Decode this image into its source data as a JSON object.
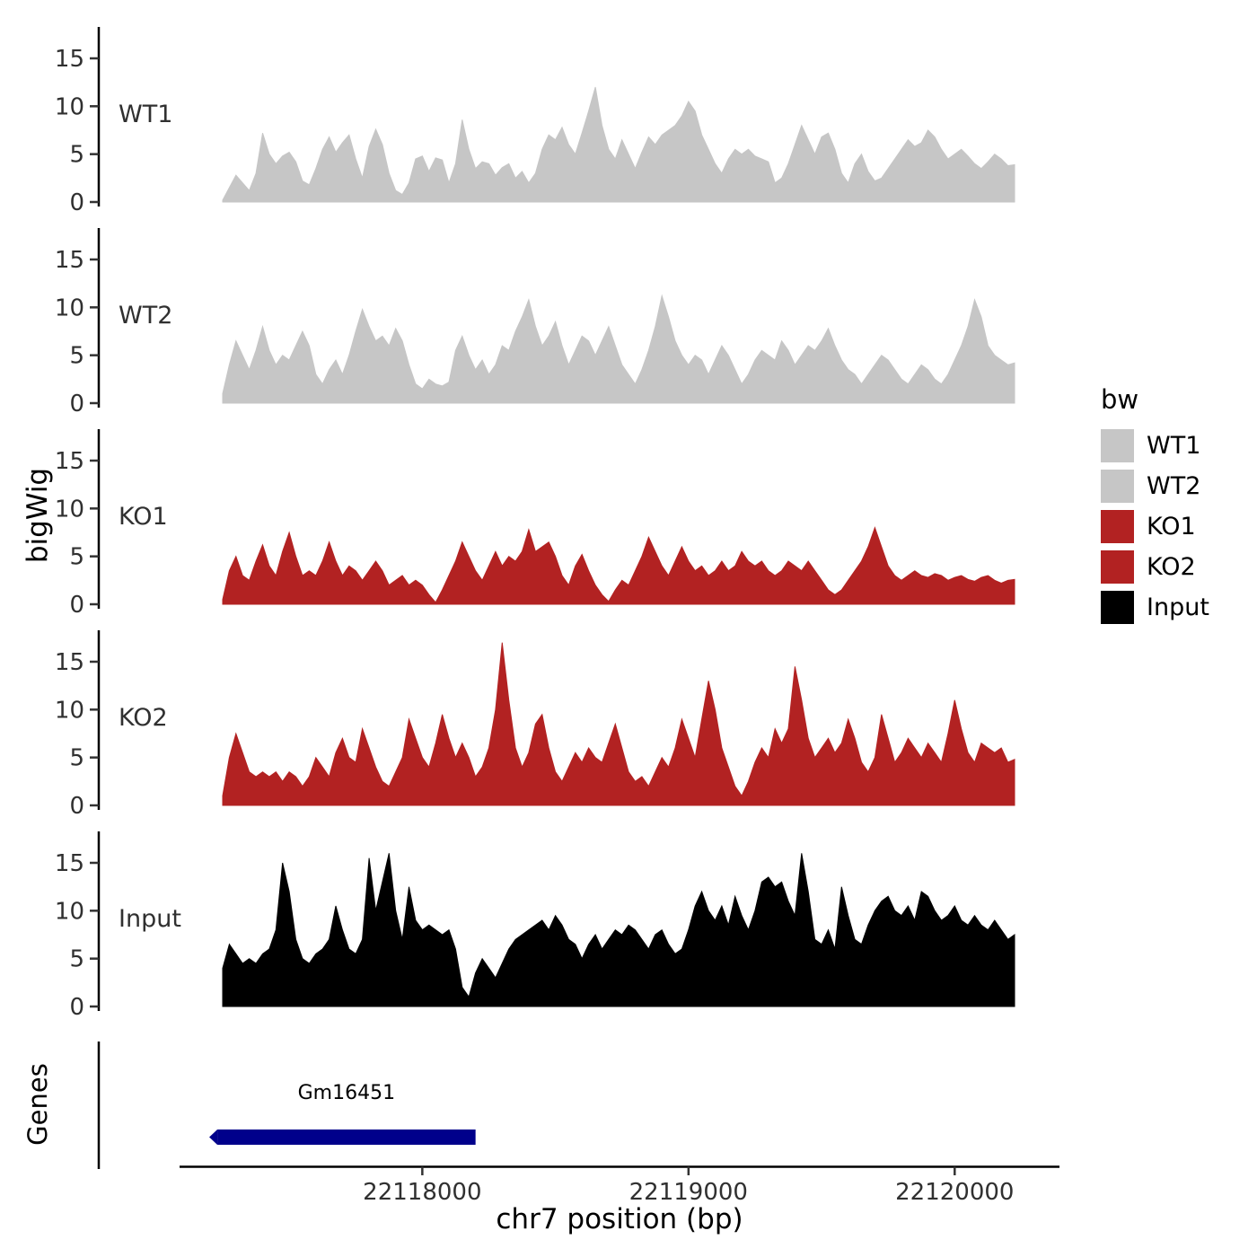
{
  "figure": {
    "y_axis_title": "bigWig",
    "genes_axis_title": "Genes",
    "x_axis_title": "chr7 position (bp)"
  },
  "legend": {
    "title": "bw",
    "entries": [
      {
        "label": "WT1",
        "color": "#C6C6C6"
      },
      {
        "label": "WT2",
        "color": "#C6C6C6"
      },
      {
        "label": "KO1",
        "color": "#B22222"
      },
      {
        "label": "KO2",
        "color": "#B22222"
      },
      {
        "label": "Input",
        "color": "#000000"
      }
    ]
  },
  "chart_data": {
    "type": "area",
    "title": "",
    "xlabel": "chr7 position (bp)",
    "ylabel": "bigWig",
    "x_range": [
      22117250,
      22120225
    ],
    "x_step": 25,
    "ylim": [
      0,
      17
    ],
    "y_ticks": [
      0,
      5,
      10,
      15
    ],
    "x_ticks": [
      22118000,
      22119000,
      22120000
    ],
    "tracks": [
      {
        "name": "WT1",
        "color": "#C6C6C6",
        "values": [
          0.2,
          1.5,
          2.8,
          2.0,
          1.2,
          3.0,
          7.2,
          5.0,
          4.0,
          4.8,
          5.2,
          4.2,
          2.2,
          1.8,
          3.5,
          5.5,
          6.8,
          5.2,
          6.2,
          7.0,
          4.5,
          2.5,
          5.8,
          7.6,
          6.0,
          3.0,
          1.2,
          0.8,
          2.0,
          4.5,
          4.8,
          3.2,
          4.6,
          4.4,
          2.0,
          4.0,
          8.6,
          5.5,
          3.5,
          4.2,
          4.0,
          2.8,
          3.6,
          4.0,
          2.5,
          3.2,
          2.0,
          3.0,
          5.5,
          7.0,
          6.5,
          7.8,
          6.0,
          5.0,
          7.2,
          9.5,
          12.0,
          8.0,
          5.5,
          4.5,
          6.5,
          5.0,
          3.5,
          5.2,
          6.8,
          6.0,
          7.0,
          7.5,
          8.0,
          9.0,
          10.5,
          9.5,
          7.0,
          5.5,
          4.0,
          3.0,
          4.5,
          5.5,
          5.0,
          5.5,
          4.8,
          4.5,
          4.2,
          2.0,
          2.5,
          4.0,
          6.0,
          8.0,
          6.5,
          5.0,
          6.8,
          7.2,
          5.5,
          3.0,
          2.0,
          4.0,
          5.0,
          3.2,
          2.2,
          2.5,
          3.5,
          4.5,
          5.5,
          6.5,
          5.8,
          6.2,
          7.5,
          6.8,
          5.5,
          4.5,
          5.0,
          5.5,
          4.8,
          4.0,
          3.5,
          4.2,
          5.0,
          4.5,
          3.8,
          3.9
        ]
      },
      {
        "name": "WT2",
        "color": "#C6C6C6",
        "values": [
          1.0,
          4.0,
          6.5,
          5.0,
          3.5,
          5.5,
          8.0,
          5.5,
          4.0,
          5.0,
          4.5,
          6.0,
          7.5,
          6.0,
          3.0,
          2.0,
          3.5,
          4.5,
          3.0,
          5.0,
          7.5,
          9.8,
          8.0,
          6.5,
          7.0,
          6.0,
          7.8,
          6.5,
          4.0,
          2.0,
          1.5,
          2.5,
          2.0,
          1.8,
          2.2,
          5.5,
          7.0,
          5.0,
          3.5,
          4.5,
          3.0,
          4.0,
          6.0,
          5.5,
          7.5,
          9.0,
          10.8,
          8.0,
          6.0,
          7.0,
          8.5,
          6.0,
          4.0,
          5.5,
          7.0,
          6.5,
          5.0,
          6.5,
          8.0,
          6.0,
          4.0,
          3.0,
          2.0,
          3.5,
          5.5,
          8.0,
          11.2,
          9.0,
          6.5,
          5.0,
          4.0,
          5.0,
          4.5,
          3.0,
          4.5,
          6.0,
          5.0,
          3.5,
          2.0,
          3.0,
          4.5,
          5.5,
          5.0,
          4.5,
          6.5,
          5.5,
          4.0,
          5.0,
          6.0,
          5.5,
          6.5,
          7.8,
          6.0,
          4.5,
          3.5,
          3.0,
          2.0,
          3.0,
          4.0,
          5.0,
          4.5,
          3.5,
          2.5,
          2.0,
          3.0,
          4.0,
          3.5,
          2.5,
          2.0,
          3.0,
          4.5,
          6.0,
          8.0,
          10.8,
          9.0,
          6.0,
          5.0,
          4.5,
          4.0,
          4.2
        ]
      },
      {
        "name": "KO1",
        "color": "#B22222",
        "values": [
          0.5,
          3.5,
          5.0,
          3.0,
          2.5,
          4.5,
          6.2,
          4.0,
          3.0,
          5.5,
          7.5,
          5.0,
          3.0,
          3.5,
          3.0,
          4.5,
          6.5,
          4.5,
          3.0,
          4.0,
          3.5,
          2.5,
          3.5,
          4.5,
          3.5,
          2.0,
          2.5,
          3.0,
          2.0,
          2.5,
          2.0,
          1.0,
          0.2,
          1.5,
          3.0,
          4.5,
          6.5,
          5.0,
          3.5,
          2.5,
          4.0,
          5.5,
          4.0,
          5.0,
          4.5,
          5.5,
          7.8,
          5.5,
          6.0,
          6.5,
          5.0,
          3.0,
          2.0,
          4.0,
          5.2,
          3.5,
          2.0,
          1.0,
          0.3,
          1.5,
          2.5,
          2.0,
          3.5,
          5.0,
          7.0,
          5.5,
          4.0,
          3.0,
          4.5,
          6.0,
          4.5,
          3.5,
          4.0,
          3.0,
          3.5,
          4.5,
          3.5,
          4.0,
          5.5,
          4.5,
          4.0,
          4.5,
          3.5,
          3.0,
          3.5,
          4.5,
          4.0,
          3.5,
          4.5,
          3.5,
          2.5,
          1.5,
          1.0,
          1.5,
          2.5,
          3.5,
          4.5,
          6.0,
          8.0,
          6.0,
          4.0,
          3.0,
          2.5,
          3.0,
          3.5,
          3.0,
          2.8,
          3.2,
          3.0,
          2.5,
          2.8,
          3.0,
          2.6,
          2.4,
          2.8,
          3.0,
          2.5,
          2.2,
          2.5,
          2.6
        ]
      },
      {
        "name": "KO2",
        "color": "#B22222",
        "values": [
          1.0,
          5.0,
          7.5,
          5.5,
          3.5,
          3.0,
          3.5,
          3.0,
          3.5,
          2.5,
          3.5,
          3.0,
          2.0,
          3.0,
          5.0,
          4.0,
          3.0,
          5.5,
          7.0,
          5.0,
          4.5,
          8.0,
          6.0,
          4.0,
          2.5,
          2.0,
          3.5,
          5.0,
          9.0,
          7.0,
          5.0,
          4.0,
          6.5,
          9.5,
          7.0,
          5.0,
          6.5,
          5.0,
          3.0,
          4.0,
          6.0,
          10.0,
          17.0,
          11.0,
          6.0,
          4.0,
          5.5,
          8.5,
          9.5,
          6.0,
          3.5,
          2.5,
          4.0,
          5.5,
          4.5,
          6.0,
          5.0,
          4.5,
          6.5,
          8.5,
          6.0,
          3.5,
          2.5,
          3.0,
          2.0,
          3.5,
          5.0,
          4.0,
          6.0,
          9.0,
          7.0,
          5.0,
          9.0,
          13.0,
          10.0,
          6.0,
          4.0,
          2.0,
          1.0,
          2.5,
          4.5,
          6.0,
          5.0,
          8.0,
          6.5,
          8.0,
          14.5,
          11.0,
          7.0,
          5.0,
          6.0,
          7.0,
          5.5,
          6.5,
          9.0,
          7.0,
          4.5,
          3.5,
          5.0,
          9.5,
          7.0,
          4.5,
          5.5,
          7.0,
          6.0,
          5.0,
          6.5,
          5.5,
          4.5,
          7.5,
          11.0,
          8.0,
          5.5,
          4.5,
          6.5,
          6.0,
          5.5,
          6.0,
          4.5,
          4.8
        ]
      },
      {
        "name": "Input",
        "color": "#000000",
        "values": [
          4.0,
          6.5,
          5.5,
          4.5,
          5.0,
          4.5,
          5.5,
          6.0,
          8.0,
          15.0,
          12.0,
          7.0,
          5.0,
          4.5,
          5.5,
          6.0,
          7.0,
          10.5,
          8.0,
          6.0,
          5.5,
          7.0,
          15.5,
          10.0,
          13.0,
          16.0,
          10.0,
          7.0,
          12.5,
          9.0,
          8.0,
          8.5,
          8.0,
          7.5,
          8.0,
          6.0,
          2.0,
          1.0,
          3.5,
          5.0,
          4.0,
          3.0,
          4.5,
          6.0,
          7.0,
          7.5,
          8.0,
          8.5,
          9.0,
          8.0,
          9.5,
          8.5,
          7.0,
          6.5,
          5.0,
          6.5,
          7.5,
          6.0,
          7.0,
          8.0,
          7.5,
          8.5,
          8.0,
          7.0,
          6.0,
          7.5,
          8.0,
          6.5,
          5.5,
          6.0,
          8.0,
          10.5,
          12.0,
          10.0,
          9.0,
          10.5,
          8.5,
          11.5,
          9.5,
          8.0,
          10.0,
          13.0,
          13.5,
          12.5,
          13.0,
          11.0,
          9.5,
          16.0,
          12.0,
          7.0,
          6.5,
          8.0,
          6.0,
          12.5,
          9.5,
          7.0,
          6.5,
          8.5,
          10.0,
          11.0,
          11.5,
          10.0,
          9.5,
          10.5,
          9.0,
          12.0,
          11.5,
          10.0,
          9.0,
          9.5,
          10.5,
          9.0,
          8.5,
          9.5,
          8.5,
          8.0,
          9.0,
          8.0,
          7.0,
          7.5
        ]
      }
    ],
    "genes_track": {
      "label": "Genes",
      "genes": [
        {
          "name": "Gm16451",
          "start": 22117230,
          "end": 22118200,
          "color": "#00008B",
          "strand": "-"
        }
      ]
    }
  }
}
